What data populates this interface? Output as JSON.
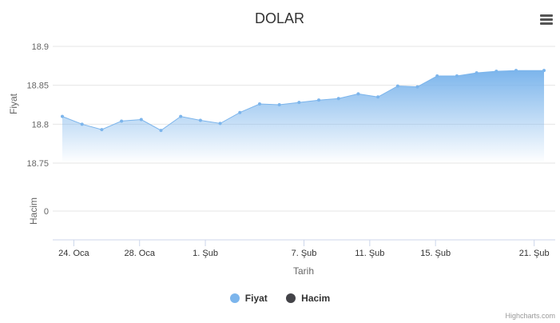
{
  "chart_data": {
    "type": "area",
    "title": "DOLAR",
    "xlabel": "Tarih",
    "panes": [
      {
        "ylabel": "Fiyat",
        "ylim": [
          18.75,
          18.9
        ],
        "yticks": [
          18.75,
          18.8,
          18.85,
          18.9
        ]
      },
      {
        "ylabel": "Hacim",
        "yticks": [
          0
        ]
      }
    ],
    "xtick_labels": [
      "24. Oca",
      "28. Oca",
      "1. Şub",
      "7. Şub",
      "11. Şub",
      "15. Şub",
      "21. Şub"
    ],
    "xtick_days": [
      2,
      6,
      10,
      16,
      20,
      24,
      30
    ],
    "x_day_range": [
      1.3,
      30.6
    ],
    "series": [
      {
        "name": "Fiyat",
        "color": "#7cb5ec",
        "days": [
          1.3,
          2.5,
          3.7,
          4.9,
          6.1,
          7.3,
          8.5,
          9.7,
          10.9,
          12.1,
          13.3,
          14.5,
          15.7,
          16.9,
          18.1,
          19.3,
          20.5,
          21.7,
          22.9,
          24.1,
          25.3,
          26.5,
          27.7,
          28.9,
          30.6
        ],
        "values": [
          18.81,
          18.8,
          18.793,
          18.804,
          18.806,
          18.792,
          18.81,
          18.805,
          18.801,
          18.815,
          18.826,
          18.825,
          18.828,
          18.831,
          18.833,
          18.839,
          18.835,
          18.849,
          18.848,
          18.862,
          18.862,
          18.866,
          18.868,
          18.869,
          18.869
        ]
      }
    ],
    "legend": [
      {
        "name": "Fiyat",
        "color": "#7cb5ec"
      },
      {
        "name": "Hacim",
        "color": "#434348"
      }
    ],
    "legend_position": "bottom",
    "grid": true
  },
  "credit": "Highcharts.com",
  "menu_icon": "hamburger-menu-icon"
}
